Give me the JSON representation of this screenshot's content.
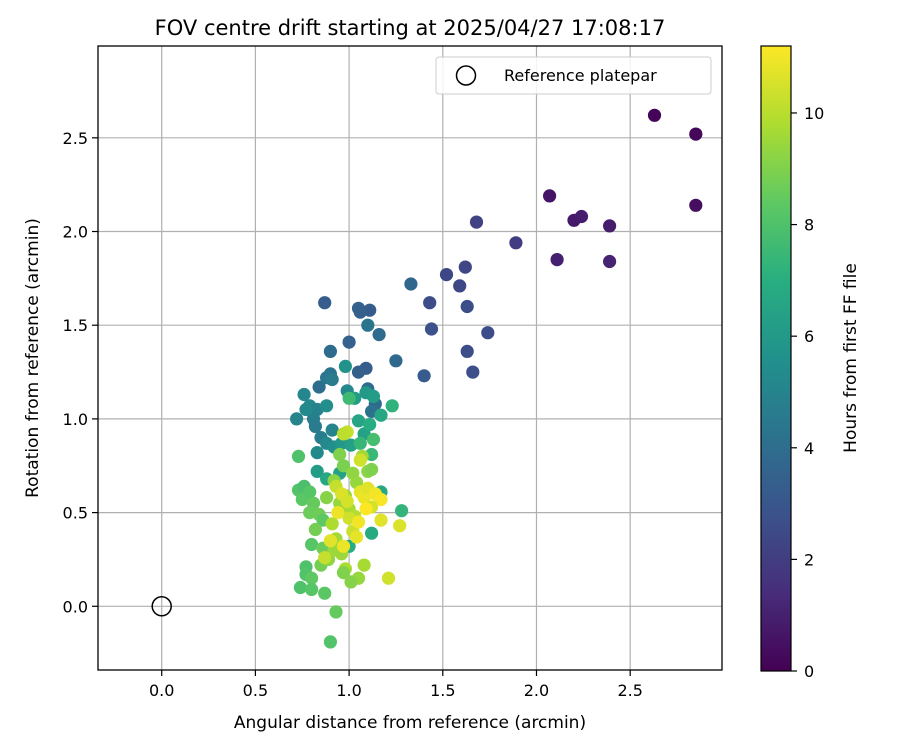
{
  "chart_data": {
    "type": "scatter",
    "title": "FOV centre drift starting at 2025/04/27 17:08:17",
    "xlabel": "Angular distance from reference (arcmin)",
    "ylabel": "Rotation from reference (arcmin)",
    "xlim": [
      -0.34,
      2.99
    ],
    "ylim": [
      -0.34,
      2.99
    ],
    "xticks": [
      0.0,
      0.5,
      1.0,
      1.5,
      2.0,
      2.5
    ],
    "xtick_labels": [
      "0.0",
      "0.5",
      "1.0",
      "1.5",
      "2.0",
      "2.5"
    ],
    "yticks": [
      0.0,
      0.5,
      1.0,
      1.5,
      2.0,
      2.5
    ],
    "ytick_labels": [
      "0.0",
      "0.5",
      "1.0",
      "1.5",
      "2.0",
      "2.5"
    ],
    "grid": true,
    "legend": {
      "position": "top-right",
      "entries": [
        {
          "label": "Reference platepar",
          "marker": "open-circle",
          "x": 0.0,
          "y": 0.0
        }
      ]
    },
    "colorbar": {
      "label": "Hours from first FF file",
      "colormap": "viridis",
      "range": [
        0,
        11.2
      ],
      "ticks": [
        0,
        2,
        4,
        6,
        8,
        10
      ],
      "tick_labels": [
        "0",
        "2",
        "4",
        "6",
        "8",
        "10"
      ]
    },
    "points": [
      [
        2.63,
        2.62,
        0.1
      ],
      [
        2.85,
        2.52,
        0.2
      ],
      [
        2.85,
        2.14,
        0.4
      ],
      [
        2.07,
        2.19,
        0.6
      ],
      [
        2.2,
        2.06,
        0.8
      ],
      [
        2.24,
        2.08,
        0.9
      ],
      [
        2.39,
        2.03,
        0.9
      ],
      [
        2.11,
        1.85,
        1.0
      ],
      [
        2.39,
        1.84,
        1.1
      ],
      [
        1.89,
        1.94,
        2.0
      ],
      [
        1.68,
        2.05,
        2.2
      ],
      [
        1.62,
        1.81,
        2.3
      ],
      [
        1.52,
        1.77,
        2.4
      ],
      [
        1.59,
        1.71,
        2.4
      ],
      [
        1.63,
        1.6,
        2.6
      ],
      [
        1.43,
        1.62,
        2.6
      ],
      [
        1.74,
        1.46,
        2.6
      ],
      [
        1.44,
        1.48,
        2.8
      ],
      [
        1.63,
        1.36,
        2.6
      ],
      [
        1.66,
        1.25,
        2.7
      ],
      [
        1.4,
        1.23,
        3.2
      ],
      [
        1.33,
        1.72,
        3.7
      ],
      [
        1.05,
        1.59,
        3.5
      ],
      [
        1.11,
        1.58,
        3.2
      ],
      [
        1.06,
        1.57,
        3.4
      ],
      [
        1.16,
        1.45,
        3.9
      ],
      [
        0.87,
        1.62,
        3.3
      ],
      [
        1.0,
        1.41,
        3.5
      ],
      [
        1.25,
        1.31,
        3.8
      ],
      [
        1.09,
        1.27,
        3.3
      ],
      [
        1.05,
        1.25,
        3.4
      ],
      [
        0.9,
        1.36,
        3.9
      ],
      [
        0.9,
        1.24,
        4.3
      ],
      [
        0.84,
        1.17,
        4.0
      ],
      [
        0.88,
        1.22,
        4.4
      ],
      [
        0.91,
        1.21,
        4.6
      ],
      [
        1.1,
        1.5,
        4.3
      ],
      [
        1.1,
        1.16,
        4.0
      ],
      [
        1.14,
        1.08,
        3.9
      ],
      [
        1.12,
        1.04,
        4.2
      ],
      [
        0.99,
        1.15,
        5.2
      ],
      [
        0.98,
        1.28,
        5.7
      ],
      [
        0.76,
        1.13,
        5.1
      ],
      [
        0.79,
        1.07,
        5.2
      ],
      [
        0.83,
        1.05,
        4.9
      ],
      [
        0.81,
        1.0,
        4.8
      ],
      [
        0.77,
        1.05,
        5.3
      ],
      [
        0.72,
        1.0,
        5.0
      ],
      [
        0.88,
        1.07,
        5.5
      ],
      [
        0.82,
        0.96,
        4.6
      ],
      [
        0.85,
        0.9,
        4.7
      ],
      [
        0.91,
        0.94,
        5.0
      ],
      [
        0.88,
        0.87,
        5.2
      ],
      [
        0.92,
        0.85,
        5.5
      ],
      [
        0.96,
        0.87,
        5.9
      ],
      [
        0.83,
        0.82,
        5.3
      ],
      [
        1.03,
        1.11,
        6.2
      ],
      [
        1.09,
        1.14,
        6.0
      ],
      [
        1.13,
        1.12,
        6.2
      ],
      [
        1.17,
        1.02,
        6.6
      ],
      [
        0.83,
        0.72,
        6.2
      ],
      [
        0.88,
        0.68,
        6.6
      ],
      [
        0.95,
        0.71,
        6.4
      ],
      [
        1.01,
        0.86,
        6.3
      ],
      [
        1.05,
        0.99,
        6.5
      ],
      [
        1.08,
        0.92,
        6.4
      ],
      [
        1.11,
        0.97,
        6.9
      ],
      [
        1.23,
        1.07,
        7.2
      ],
      [
        1.28,
        0.51,
        7.3
      ],
      [
        1.17,
        0.61,
        6.7
      ],
      [
        1.12,
        0.39,
        6.8
      ],
      [
        1.0,
        0.32,
        6.9
      ],
      [
        1.0,
        1.11,
        7.6
      ],
      [
        1.06,
        0.87,
        7.4
      ],
      [
        1.12,
        0.81,
        7.5
      ],
      [
        1.13,
        0.89,
        7.8
      ],
      [
        0.73,
        0.8,
        8.0
      ],
      [
        0.73,
        0.62,
        8.1
      ],
      [
        0.75,
        0.57,
        8.3
      ],
      [
        0.76,
        0.64,
        7.9
      ],
      [
        0.79,
        0.61,
        8.2
      ],
      [
        0.81,
        0.55,
        8.5
      ],
      [
        0.79,
        0.5,
        8.6
      ],
      [
        0.84,
        0.49,
        8.7
      ],
      [
        0.86,
        0.46,
        8.4
      ],
      [
        0.82,
        0.41,
        8.8
      ],
      [
        0.8,
        0.33,
        8.2
      ],
      [
        0.86,
        0.31,
        8.6
      ],
      [
        0.77,
        0.21,
        8.0
      ],
      [
        0.77,
        0.17,
        8.1
      ],
      [
        0.8,
        0.15,
        8.4
      ],
      [
        0.74,
        0.1,
        8.0
      ],
      [
        0.8,
        0.09,
        8.2
      ],
      [
        0.87,
        0.07,
        8.3
      ],
      [
        0.93,
        -0.03,
        8.5
      ],
      [
        0.9,
        -0.19,
        8.1
      ],
      [
        0.85,
        0.22,
        8.8
      ],
      [
        0.88,
        0.58,
        9.1
      ],
      [
        0.92,
        0.67,
        9.2
      ],
      [
        0.95,
        0.81,
        9.0
      ],
      [
        0.97,
        0.75,
        8.9
      ],
      [
        1.02,
        0.71,
        9.3
      ],
      [
        1.04,
        0.66,
        9.4
      ],
      [
        1.07,
        0.8,
        9.6
      ],
      [
        1.1,
        0.72,
        9.2
      ],
      [
        1.12,
        0.73,
        9.0
      ],
      [
        0.95,
        0.55,
        9.4
      ],
      [
        0.98,
        0.59,
        9.6
      ],
      [
        1.0,
        0.52,
        9.7
      ],
      [
        1.03,
        0.48,
        9.9
      ],
      [
        0.91,
        0.44,
        9.8
      ],
      [
        0.93,
        0.36,
        9.6
      ],
      [
        0.96,
        0.28,
        9.5
      ],
      [
        0.98,
        0.2,
        9.8
      ],
      [
        1.05,
        0.15,
        9.4
      ],
      [
        1.08,
        0.22,
        9.7
      ],
      [
        0.97,
        0.18,
        9.0
      ],
      [
        1.01,
        0.13,
        9.1
      ],
      [
        0.89,
        0.25,
        9.3
      ],
      [
        0.92,
        0.3,
        9.5
      ],
      [
        0.99,
        0.93,
        10.2
      ],
      [
        0.97,
        0.92,
        10.1
      ],
      [
        1.06,
        0.78,
        10.4
      ],
      [
        0.93,
        0.64,
        10.2
      ],
      [
        0.96,
        0.6,
        10.6
      ],
      [
        1.06,
        0.61,
        10.8
      ],
      [
        1.08,
        0.58,
        10.9
      ],
      [
        1.1,
        0.63,
        10.7
      ],
      [
        1.14,
        0.6,
        11.0
      ],
      [
        1.17,
        0.57,
        11.1
      ],
      [
        1.12,
        0.53,
        10.5
      ],
      [
        1.0,
        0.47,
        10.4
      ],
      [
        1.02,
        0.4,
        10.3
      ],
      [
        1.04,
        0.37,
        10.8
      ],
      [
        0.97,
        0.32,
        10.9
      ],
      [
        1.17,
        0.46,
        10.7
      ],
      [
        1.27,
        0.43,
        10.6
      ],
      [
        1.21,
        0.15,
        10.4
      ],
      [
        0.87,
        0.26,
        10.2
      ],
      [
        0.9,
        0.35,
        10.7
      ],
      [
        1.05,
        0.45,
        11.0
      ],
      [
        1.09,
        0.52,
        11.2
      ],
      [
        0.94,
        0.5,
        10.9
      ],
      [
        0.99,
        0.56,
        10.5
      ]
    ]
  }
}
